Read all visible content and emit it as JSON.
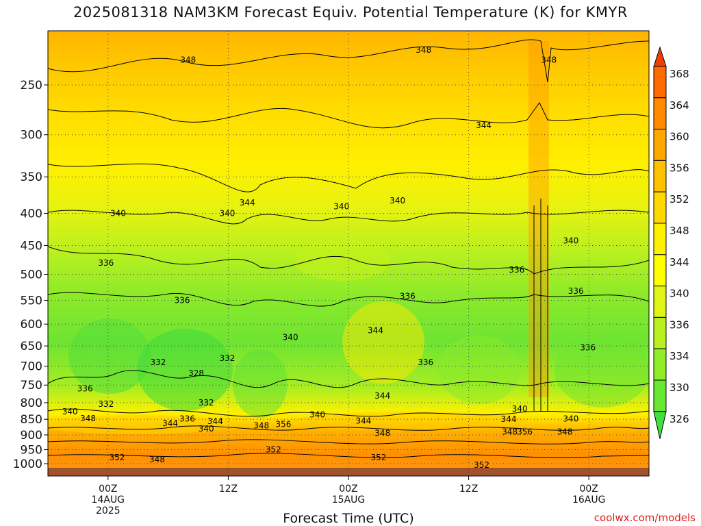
{
  "chart_data": {
    "type": "heatmap",
    "title": "2025081318 NAM3KM Forecast Equiv. Potential Temperature (K) for KMYR",
    "xlabel": "Forecast Time (UTC)",
    "ylabel": "",
    "y_scale": "log",
    "y_inverted": true,
    "y_ticks": [
      250,
      300,
      350,
      400,
      450,
      500,
      550,
      600,
      650,
      700,
      750,
      800,
      850,
      900,
      950,
      1000
    ],
    "x_range_hours": [
      -6,
      54
    ],
    "x_ticks": [
      {
        "hour": 0,
        "lines": [
          "00Z",
          "14AUG",
          "2025"
        ]
      },
      {
        "hour": 12,
        "lines": [
          "12Z"
        ]
      },
      {
        "hour": 24,
        "lines": [
          "00Z",
          "15AUG"
        ]
      },
      {
        "hour": 36,
        "lines": [
          "12Z"
        ]
      },
      {
        "hour": 48,
        "lines": [
          "00Z",
          "16AUG"
        ]
      }
    ],
    "colorbar": {
      "levels": [
        326,
        330,
        334,
        336,
        340,
        344,
        348,
        352,
        356,
        360,
        364,
        368
      ],
      "colors": [
        "#40e040",
        "#68e830",
        "#90ee28",
        "#b8f020",
        "#e0f418",
        "#ffff00",
        "#fff000",
        "#ffd800",
        "#ffc000",
        "#ffa800",
        "#ff8c00",
        "#ff6a00",
        "#f04000"
      ]
    },
    "grid": true,
    "contour_labels": [
      {
        "hour": 31.5,
        "p": 220,
        "value": 348
      },
      {
        "hour": 8,
        "p": 228,
        "value": 348
      },
      {
        "hour": 44,
        "p": 228,
        "value": 348
      },
      {
        "hour": 37.5,
        "p": 290,
        "value": 344
      },
      {
        "hour": 1,
        "p": 400,
        "value": 340
      },
      {
        "hour": 11.9,
        "p": 400,
        "value": 340
      },
      {
        "hour": 13.9,
        "p": 385,
        "value": 344
      },
      {
        "hour": 23.3,
        "p": 390,
        "value": 340
      },
      {
        "hour": 28.9,
        "p": 382,
        "value": 340
      },
      {
        "hour": 46.2,
        "p": 442,
        "value": 340
      },
      {
        "hour": -0.2,
        "p": 480,
        "value": 336
      },
      {
        "hour": 40.8,
        "p": 492,
        "value": 336
      },
      {
        "hour": 46.7,
        "p": 532,
        "value": 336
      },
      {
        "hour": 7.4,
        "p": 550,
        "value": 336
      },
      {
        "hour": 29.9,
        "p": 542,
        "value": 336
      },
      {
        "hour": 18.2,
        "p": 630,
        "value": 340
      },
      {
        "hour": 26.7,
        "p": 614,
        "value": 344
      },
      {
        "hour": 47.9,
        "p": 654,
        "value": 336
      },
      {
        "hour": 5,
        "p": 690,
        "value": 332
      },
      {
        "hour": 11.9,
        "p": 680,
        "value": 332
      },
      {
        "hour": 8.8,
        "p": 718,
        "value": 328
      },
      {
        "hour": 31.7,
        "p": 690,
        "value": 336
      },
      {
        "hour": -2.3,
        "p": 760,
        "value": 336
      },
      {
        "hour": 27.4,
        "p": 780,
        "value": 344
      },
      {
        "hour": -0.2,
        "p": 804,
        "value": 332
      },
      {
        "hour": 9.8,
        "p": 800,
        "value": 332
      },
      {
        "hour": -3.8,
        "p": 827,
        "value": 340
      },
      {
        "hour": -2,
        "p": 848,
        "value": 348
      },
      {
        "hour": 6.2,
        "p": 862,
        "value": 344
      },
      {
        "hour": 7.9,
        "p": 849,
        "value": 336
      },
      {
        "hour": 10.7,
        "p": 856,
        "value": 344
      },
      {
        "hour": 9.8,
        "p": 880,
        "value": 340
      },
      {
        "hour": 15.3,
        "p": 870,
        "value": 348
      },
      {
        "hour": 17.5,
        "p": 866,
        "value": 356
      },
      {
        "hour": 20.9,
        "p": 836,
        "value": 340
      },
      {
        "hour": 25.5,
        "p": 855,
        "value": 344
      },
      {
        "hour": 27.4,
        "p": 895,
        "value": 348
      },
      {
        "hour": 40,
        "p": 850,
        "value": 344
      },
      {
        "hour": 40.1,
        "p": 890,
        "value": 348
      },
      {
        "hour": 41.6,
        "p": 890,
        "value": 356
      },
      {
        "hour": 41.1,
        "p": 818,
        "value": 340
      },
      {
        "hour": 45.6,
        "p": 890,
        "value": 348
      },
      {
        "hour": 46.2,
        "p": 849,
        "value": 340
      },
      {
        "hour": 0.9,
        "p": 978,
        "value": 352
      },
      {
        "hour": 4.9,
        "p": 985,
        "value": 348
      },
      {
        "hour": 16.5,
        "p": 950,
        "value": 352
      },
      {
        "hour": 27,
        "p": 978,
        "value": 352
      },
      {
        "hour": 37.3,
        "p": 1005,
        "value": 352
      }
    ]
  },
  "credit": "coolwx.com/models"
}
